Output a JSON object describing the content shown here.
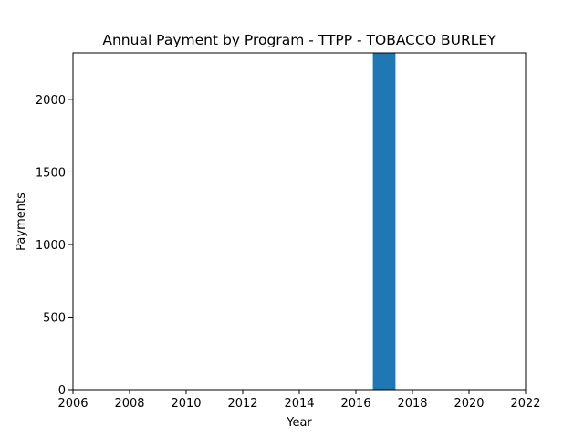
{
  "chart_data": {
    "type": "bar",
    "title": "Annual Payment by Program - TTPP - TOBACCO BURLEY",
    "xlabel": "Year",
    "ylabel": "Payments",
    "x": [
      2017
    ],
    "values": [
      2320
    ],
    "bar_width": 0.8,
    "xlim": [
      2006,
      2022
    ],
    "ylim": [
      0,
      2320
    ],
    "xticks": [
      2006,
      2008,
      2010,
      2012,
      2014,
      2016,
      2018,
      2020,
      2022
    ],
    "yticks": [
      0,
      500,
      1000,
      1500,
      2000
    ],
    "grid": false,
    "legend": "none",
    "bar_color": "#1f77b4"
  }
}
